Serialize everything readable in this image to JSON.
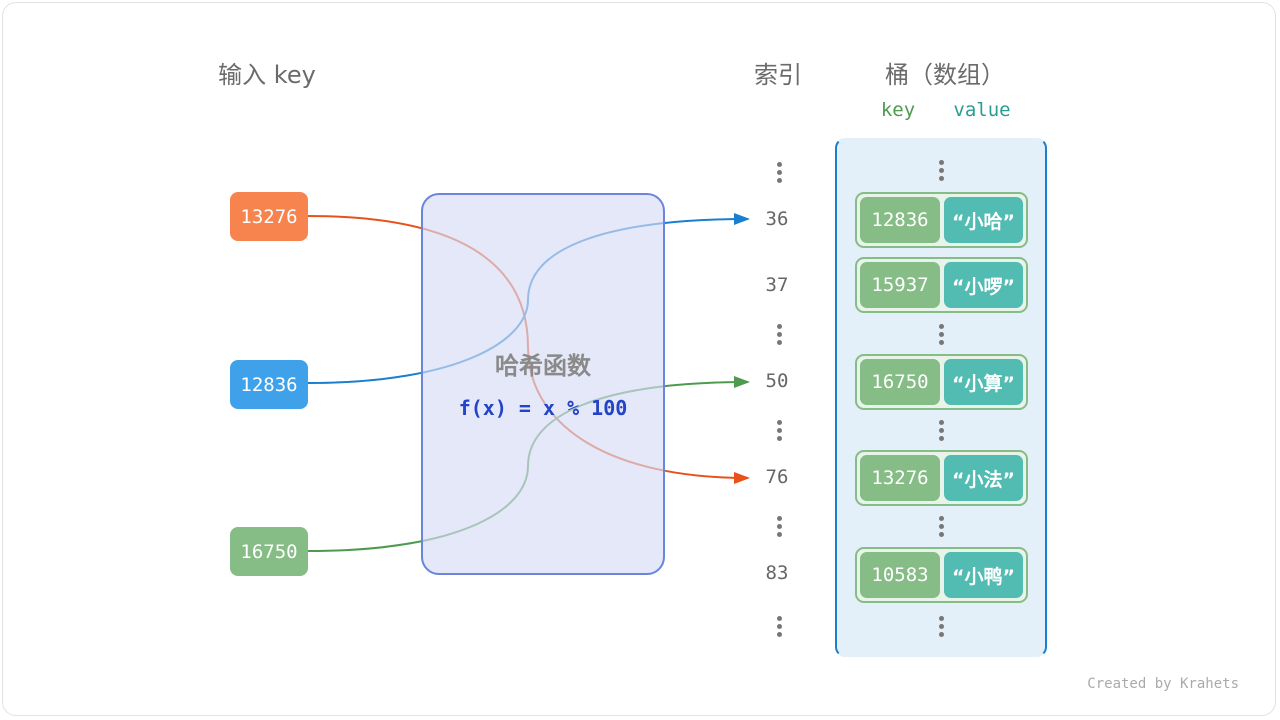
{
  "headers": {
    "input": "输入 key",
    "index": "索引",
    "bucket": "桶（数组）",
    "key": "key",
    "value": "value"
  },
  "inputs": [
    {
      "key": "13276",
      "color": "#f7834f"
    },
    {
      "key": "12836",
      "color": "#3ea1ea"
    },
    {
      "key": "16750",
      "color": "#86bc85"
    }
  ],
  "hash_function": {
    "title": "哈希函数",
    "formula": "f(x) = x % 100"
  },
  "indices": [
    "36",
    "37",
    "50",
    "76",
    "83"
  ],
  "entries": [
    {
      "key": "12836",
      "value": "“小哈”"
    },
    {
      "key": "15937",
      "value": "“小啰”"
    },
    {
      "key": "16750",
      "value": "“小算”"
    },
    {
      "key": "13276",
      "value": "“小法”"
    },
    {
      "key": "10583",
      "value": "“小鸭”"
    }
  ],
  "colors": {
    "orange": "#e8521a",
    "blue": "#1a7fcf",
    "green": "#4e9a4f",
    "key_green": "#86bc85",
    "value_teal": "#52bbb2",
    "formula": "#2343c9"
  },
  "credit": "Created by Krahets"
}
